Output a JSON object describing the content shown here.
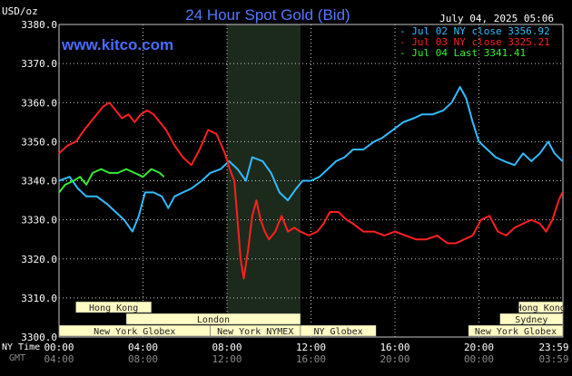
{
  "header": {
    "title": "24 Hour Spot Gold (Bid)",
    "date": "July 04, 2025 05:06",
    "watermark": "www.kitco.com",
    "unit": "USD/oz"
  },
  "legend": [
    {
      "text": "- Jul 02 NY close 3356.92",
      "color": "#33bbff"
    },
    {
      "text": "- Jul 03 NY close 3325.21",
      "color": "#ff2020"
    },
    {
      "text": "- Jul 04 Last 3341.41",
      "color": "#33ee33"
    }
  ],
  "sessions": [
    {
      "label": "Hong Kong",
      "start": 0.8,
      "end": 4.4,
      "row": 0
    },
    {
      "label": "London",
      "start": 3.2,
      "end": 11.5,
      "row": 1
    },
    {
      "label": "New York Globex",
      "start": 0,
      "end": 7.2,
      "row": 2
    },
    {
      "label": "New York NYMEX",
      "start": 7.2,
      "end": 11.5,
      "row": 2
    },
    {
      "label": "NY Globex",
      "start": 11.5,
      "end": 15.1,
      "row": 2
    },
    {
      "label": "Hong Kong",
      "start": 21.9,
      "end": 24,
      "row": 0
    },
    {
      "label": "Sydney",
      "start": 21.0,
      "end": 24,
      "row": 1
    },
    {
      "label": "New York Globex",
      "start": 19.5,
      "end": 24,
      "row": 2
    }
  ],
  "time_axis": {
    "ny_label": "NY Time",
    "gmt_label": "GMT",
    "ny_ticks": [
      "00:00",
      "04:00",
      "08:00",
      "12:00",
      "16:00",
      "20:00",
      "23:59"
    ],
    "gmt_ticks": [
      "04:00",
      "08:00",
      "12:00",
      "16:00",
      "20:00",
      "00:00",
      "03:59"
    ]
  },
  "colors": {
    "background": "#000000",
    "grid": "#c8c8c8",
    "title": "#5577ff",
    "highlight": "#1c2a1c",
    "session_fill": "#fffbc4",
    "session_text": "#222222",
    "axis_text": "#ffffff",
    "gmt_text": "#8a8a8a"
  },
  "chart_data": {
    "type": "line",
    "title": "24 Hour Spot Gold (Bid)",
    "xlabel": "NY Time",
    "ylabel": "USD/oz",
    "ylim": [
      3300,
      3380
    ],
    "xlim": [
      0,
      24
    ],
    "grid": true,
    "legend_position": "top-right",
    "highlight_x": [
      8.0,
      11.5
    ],
    "yticks": [
      "3300.0",
      "3310.0",
      "3320.0",
      "3330.0",
      "3340.0",
      "3350.0",
      "3360.0",
      "3370.0",
      "3380.0"
    ],
    "series": [
      {
        "name": "Jul 02 NY close 3356.92",
        "color": "#33bbff",
        "points": [
          [
            0,
            3340
          ],
          [
            0.5,
            3341
          ],
          [
            0.9,
            3338
          ],
          [
            1.3,
            3336
          ],
          [
            1.8,
            3336
          ],
          [
            2.3,
            3334
          ],
          [
            2.7,
            3332
          ],
          [
            3.1,
            3330
          ],
          [
            3.5,
            3327
          ],
          [
            3.8,
            3331
          ],
          [
            4.1,
            3337
          ],
          [
            4.5,
            3337
          ],
          [
            4.9,
            3336
          ],
          [
            5.2,
            3333
          ],
          [
            5.5,
            3336
          ],
          [
            5.9,
            3337
          ],
          [
            6.3,
            3338
          ],
          [
            6.8,
            3340
          ],
          [
            7.2,
            3342
          ],
          [
            7.7,
            3343
          ],
          [
            8.1,
            3345
          ],
          [
            8.5,
            3343
          ],
          [
            8.9,
            3340
          ],
          [
            9.2,
            3346
          ],
          [
            9.7,
            3345
          ],
          [
            10.1,
            3342
          ],
          [
            10.5,
            3337
          ],
          [
            10.9,
            3335
          ],
          [
            11.3,
            3338
          ],
          [
            11.6,
            3340
          ],
          [
            12.0,
            3340
          ],
          [
            12.4,
            3341
          ],
          [
            12.8,
            3343
          ],
          [
            13.2,
            3345
          ],
          [
            13.6,
            3346
          ],
          [
            14.0,
            3348
          ],
          [
            14.5,
            3348
          ],
          [
            15.0,
            3350
          ],
          [
            15.4,
            3351
          ],
          [
            15.9,
            3353
          ],
          [
            16.4,
            3355
          ],
          [
            16.9,
            3356
          ],
          [
            17.3,
            3357
          ],
          [
            17.8,
            3357
          ],
          [
            18.3,
            3358
          ],
          [
            18.7,
            3360
          ],
          [
            19.1,
            3364
          ],
          [
            19.4,
            3361
          ],
          [
            19.7,
            3355
          ],
          [
            20.0,
            3350
          ],
          [
            20.4,
            3348
          ],
          [
            20.8,
            3346
          ],
          [
            21.2,
            3345
          ],
          [
            21.7,
            3344
          ],
          [
            22.1,
            3347
          ],
          [
            22.5,
            3345
          ],
          [
            22.9,
            3347
          ],
          [
            23.3,
            3350
          ],
          [
            23.6,
            3347
          ],
          [
            23.98,
            3345
          ]
        ]
      },
      {
        "name": "Jul 03 NY close 3325.21",
        "color": "#ff2020",
        "points": [
          [
            0,
            3347
          ],
          [
            0.4,
            3349
          ],
          [
            0.8,
            3350
          ],
          [
            1.2,
            3353
          ],
          [
            1.5,
            3355
          ],
          [
            1.8,
            3357
          ],
          [
            2.1,
            3359
          ],
          [
            2.4,
            3360
          ],
          [
            2.7,
            3358
          ],
          [
            3.0,
            3356
          ],
          [
            3.3,
            3357
          ],
          [
            3.6,
            3355
          ],
          [
            3.9,
            3357
          ],
          [
            4.2,
            3358
          ],
          [
            4.5,
            3357
          ],
          [
            4.8,
            3355
          ],
          [
            5.1,
            3353
          ],
          [
            5.5,
            3349
          ],
          [
            5.9,
            3346
          ],
          [
            6.3,
            3344
          ],
          [
            6.7,
            3348
          ],
          [
            7.1,
            3353
          ],
          [
            7.5,
            3352
          ],
          [
            7.9,
            3347
          ],
          [
            8.2,
            3342
          ],
          [
            8.35,
            3340
          ],
          [
            8.5,
            3330
          ],
          [
            8.65,
            3320
          ],
          [
            8.8,
            3315
          ],
          [
            9.0,
            3322
          ],
          [
            9.2,
            3331
          ],
          [
            9.4,
            3335
          ],
          [
            9.6,
            3330
          ],
          [
            9.8,
            3327
          ],
          [
            10.0,
            3325
          ],
          [
            10.3,
            3327
          ],
          [
            10.6,
            3331
          ],
          [
            10.9,
            3327
          ],
          [
            11.2,
            3328
          ],
          [
            11.5,
            3327
          ],
          [
            11.9,
            3326
          ],
          [
            12.3,
            3327
          ],
          [
            12.6,
            3329
          ],
          [
            12.9,
            3332
          ],
          [
            13.3,
            3332
          ],
          [
            13.7,
            3330
          ],
          [
            14.0,
            3329
          ],
          [
            14.5,
            3327
          ],
          [
            15.0,
            3327
          ],
          [
            15.5,
            3326
          ],
          [
            16.0,
            3327
          ],
          [
            16.5,
            3326
          ],
          [
            17.0,
            3325
          ],
          [
            17.5,
            3325
          ],
          [
            18.0,
            3326
          ],
          [
            18.5,
            3324
          ],
          [
            18.9,
            3324
          ],
          [
            19.3,
            3325
          ],
          [
            19.7,
            3326
          ],
          [
            20.1,
            3330
          ],
          [
            20.5,
            3331
          ],
          [
            20.9,
            3327
          ],
          [
            21.3,
            3326
          ],
          [
            21.7,
            3328
          ],
          [
            22.1,
            3329
          ],
          [
            22.5,
            3330
          ],
          [
            22.9,
            3329
          ],
          [
            23.2,
            3327
          ],
          [
            23.5,
            3330
          ],
          [
            23.8,
            3335
          ],
          [
            23.98,
            3337
          ]
        ]
      },
      {
        "name": "Jul 04 Last 3341.41",
        "color": "#33ee33",
        "points": [
          [
            0,
            3337
          ],
          [
            0.3,
            3339
          ],
          [
            0.7,
            3340
          ],
          [
            1.0,
            3341
          ],
          [
            1.3,
            3339
          ],
          [
            1.6,
            3342
          ],
          [
            2.0,
            3343
          ],
          [
            2.4,
            3342
          ],
          [
            2.8,
            3342
          ],
          [
            3.2,
            3343
          ],
          [
            3.6,
            3342
          ],
          [
            4.0,
            3341
          ],
          [
            4.4,
            3343
          ],
          [
            4.8,
            3342
          ],
          [
            5.0,
            3341
          ]
        ]
      }
    ]
  }
}
